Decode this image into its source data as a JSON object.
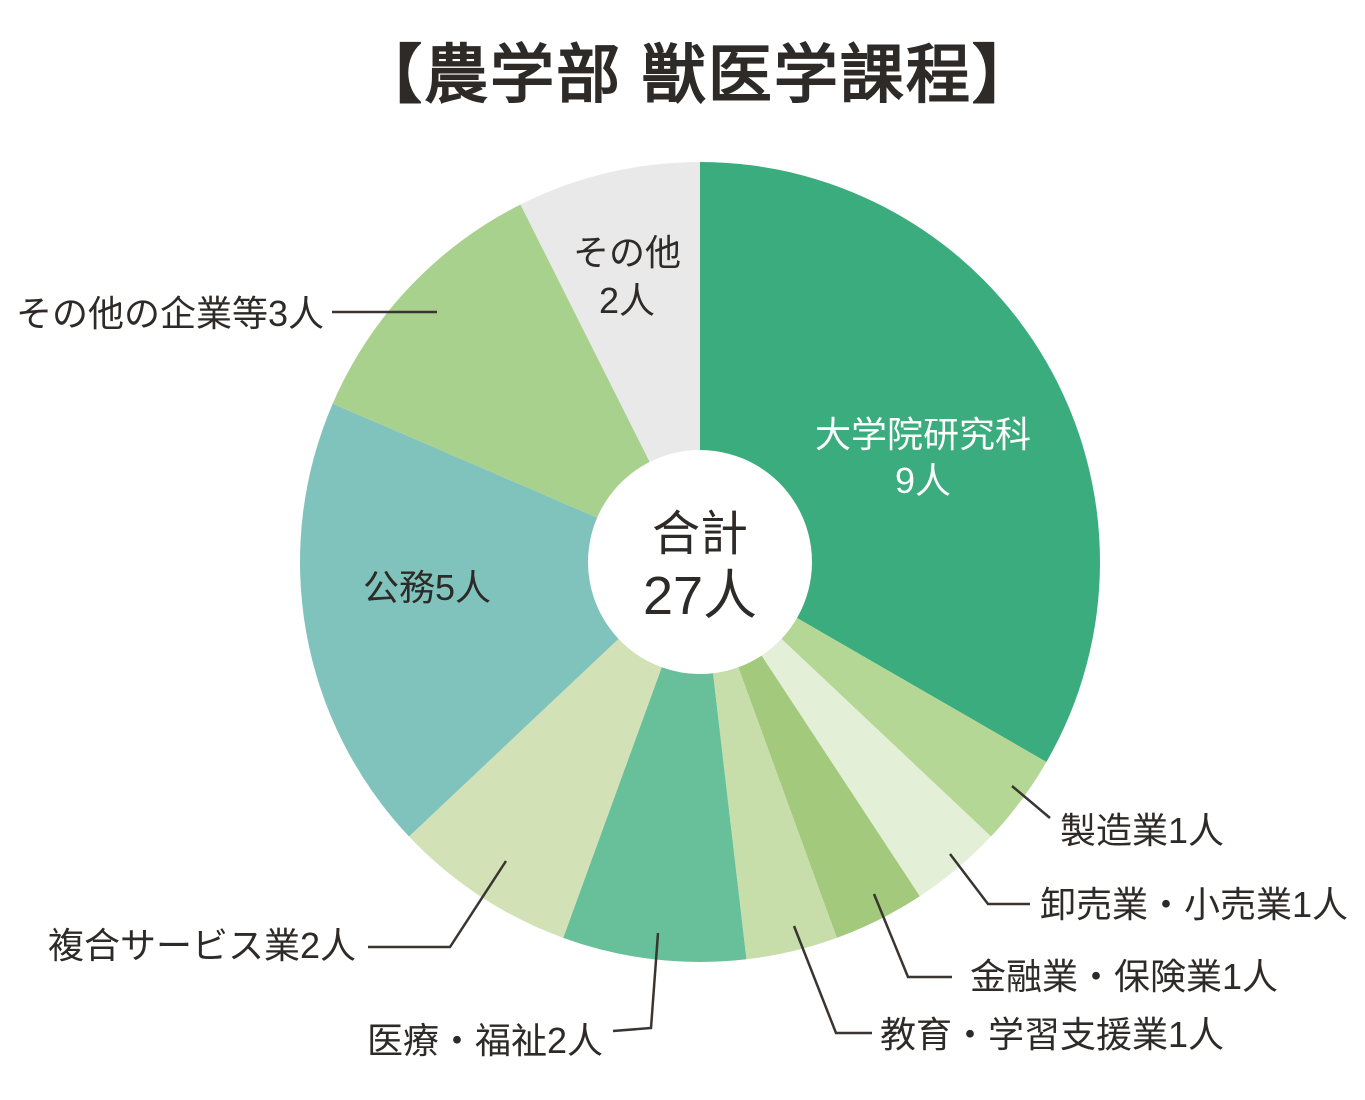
{
  "chart_data": {
    "type": "pie",
    "variant": "donut",
    "title": "【農学部 獣医学課程】",
    "center_label_line1": "合計",
    "center_label_line2": "27人",
    "total": 27,
    "unit": "人",
    "legend_position": "none",
    "start_angle_deg": 0,
    "direction": "clockwise",
    "segments": [
      {
        "label": "大学院研究科",
        "value": 9,
        "color": "#3bac7d",
        "label_placement": "inside-white",
        "display_line1": "大学院研究科",
        "display_line2": "9人"
      },
      {
        "label": "製造業",
        "value": 1,
        "color": "#b5d795",
        "label_placement": "callout",
        "callout": "製造業1人"
      },
      {
        "label": "卸売業・小売業",
        "value": 1,
        "color": "#e4efd7",
        "label_placement": "callout",
        "callout": "卸売業・小売業1人"
      },
      {
        "label": "金融業・保険業",
        "value": 1,
        "color": "#a3c97c",
        "label_placement": "callout",
        "callout": "金融業・保険業1人"
      },
      {
        "label": "教育・学習支援業",
        "value": 1,
        "color": "#c7deab",
        "label_placement": "callout",
        "callout": "教育・学習支援業1人"
      },
      {
        "label": "医療・福祉",
        "value": 2,
        "color": "#67c099",
        "label_placement": "callout",
        "callout": "医療・福祉2人"
      },
      {
        "label": "複合サービス業",
        "value": 2,
        "color": "#d2e2b6",
        "label_placement": "callout",
        "callout": "複合サービス業2人"
      },
      {
        "label": "公務",
        "value": 5,
        "color": "#80c3bc",
        "label_placement": "inside-dark",
        "inside_label": "公務5人"
      },
      {
        "label": "その他の企業等",
        "value": 3,
        "color": "#a9d18e",
        "label_placement": "callout",
        "callout": "その他の企業等3人"
      },
      {
        "label": "その他",
        "value": 2,
        "color": "#e9e9e9",
        "label_placement": "inside-dark",
        "display_line1": "その他",
        "display_line2": "2人"
      }
    ]
  },
  "colors": {
    "text": "#2e2a27",
    "leader_line": "#3a3531",
    "inside_label_light": "#ffffff",
    "background": "#ffffff"
  }
}
